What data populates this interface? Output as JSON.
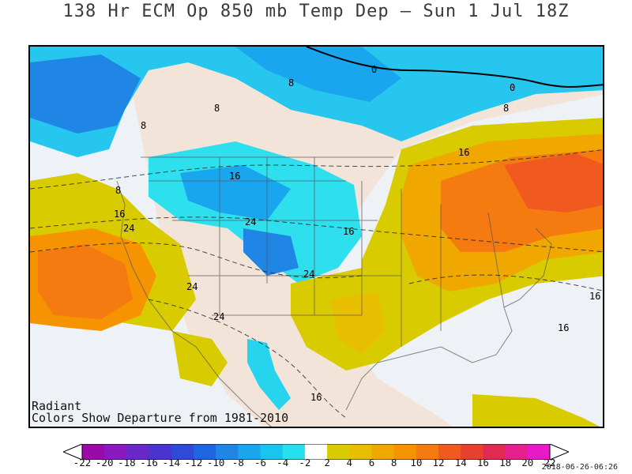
{
  "title": "138 Hr ECM Op 850 mb Temp Dep — Sun 1 Jul 18Z",
  "credit": {
    "brand": "Radiant",
    "note": "Colors Show Departure from 1981-2010"
  },
  "timestamp": "2018-06-26-06:26",
  "colorbar": {
    "labels": [
      "-22",
      "-20",
      "-18",
      "-16",
      "-14",
      "-12",
      "-10",
      "-8",
      "-6",
      "-4",
      "-2",
      "2",
      "4",
      "6",
      "8",
      "10",
      "12",
      "14",
      "16",
      "18",
      "20",
      "22"
    ],
    "colors": [
      "#9a0aa8",
      "#8a1ac0",
      "#6a28c8",
      "#4a34d0",
      "#2f4ad8",
      "#1e66e0",
      "#1f86e6",
      "#1aa6ee",
      "#19c4f0",
      "#27e0ee",
      "#ffffff",
      "#d8cc00",
      "#e8be00",
      "#f0a800",
      "#f59400",
      "#f57a10",
      "#f05a1e",
      "#e8402e",
      "#e02a50",
      "#e4208c",
      "#e81ac8"
    ],
    "left_color": "#ffffff",
    "right_color": "#ffffff"
  },
  "contour_labels": [
    "0",
    "0",
    "8",
    "8",
    "8",
    "8",
    "16",
    "16",
    "16",
    "16",
    "16",
    "24",
    "24",
    "24",
    "24",
    "24",
    "16",
    "16",
    "8"
  ],
  "icons": [
    "map-frame-icon"
  ]
}
